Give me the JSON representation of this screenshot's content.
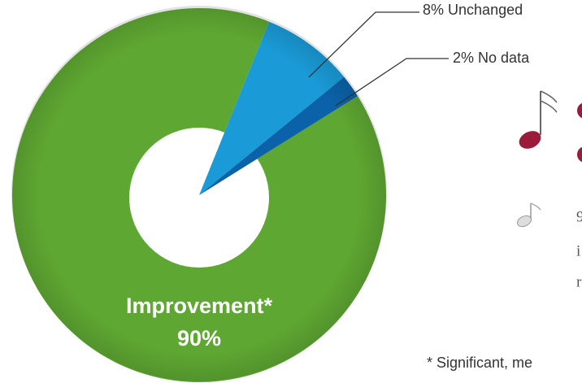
{
  "chart_data": {
    "type": "pie",
    "categories": [
      "Unchanged",
      "No data",
      "Improvement*"
    ],
    "values": [
      8,
      2,
      90
    ],
    "value_labels": [
      "8%",
      "2%",
      "90%"
    ],
    "colors": [
      "#1a9ad6",
      "#0b62a8",
      "#5ea732"
    ],
    "footnote": "* Significant, me",
    "side_notes": [
      "9",
      "i",
      "r"
    ]
  }
}
